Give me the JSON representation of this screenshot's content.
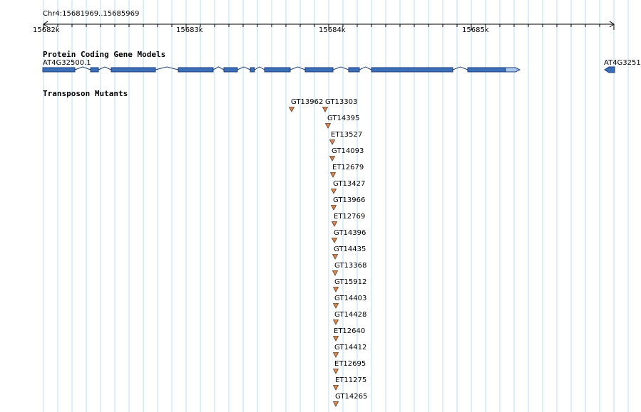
{
  "viewer": {
    "locus": "Chr4:15681969..15685969",
    "ruler": {
      "start": 15681969,
      "end": 15685969,
      "ticks": [
        "15682k",
        "15683k",
        "15684k",
        "15685k"
      ]
    }
  },
  "tracks": {
    "genes": {
      "title": "Protein Coding Gene Models",
      "gene_label": "AT4G32500.1",
      "next_gene_label": "AT4G3251"
    },
    "transposons": {
      "title": "Transposon Mutants",
      "insertions": [
        {
          "label": "GT13962"
        },
        {
          "label": "GT13303"
        },
        {
          "label": "GT14395"
        },
        {
          "label": "ET13527"
        },
        {
          "label": "GT14093"
        },
        {
          "label": "ET12679"
        },
        {
          "label": "GT13427"
        },
        {
          "label": "GT13966"
        },
        {
          "label": "ET12769"
        },
        {
          "label": "GT14396"
        },
        {
          "label": "GT14435"
        },
        {
          "label": "GT13368"
        },
        {
          "label": "GT15912"
        },
        {
          "label": "GT14403"
        },
        {
          "label": "GT14428"
        },
        {
          "label": "ET12640"
        },
        {
          "label": "GT14412"
        },
        {
          "label": "ET12695"
        },
        {
          "label": "ET11275"
        },
        {
          "label": "GT14265"
        }
      ]
    }
  },
  "colors": {
    "gridline": "#b8dcec",
    "exon_fill": "#3a6eb8",
    "exon_stroke": "#1e3d78",
    "utr_fill": "#a9c6ec",
    "insertion_fill": "#d2885a",
    "insertion_stroke": "#6a3e1e"
  }
}
